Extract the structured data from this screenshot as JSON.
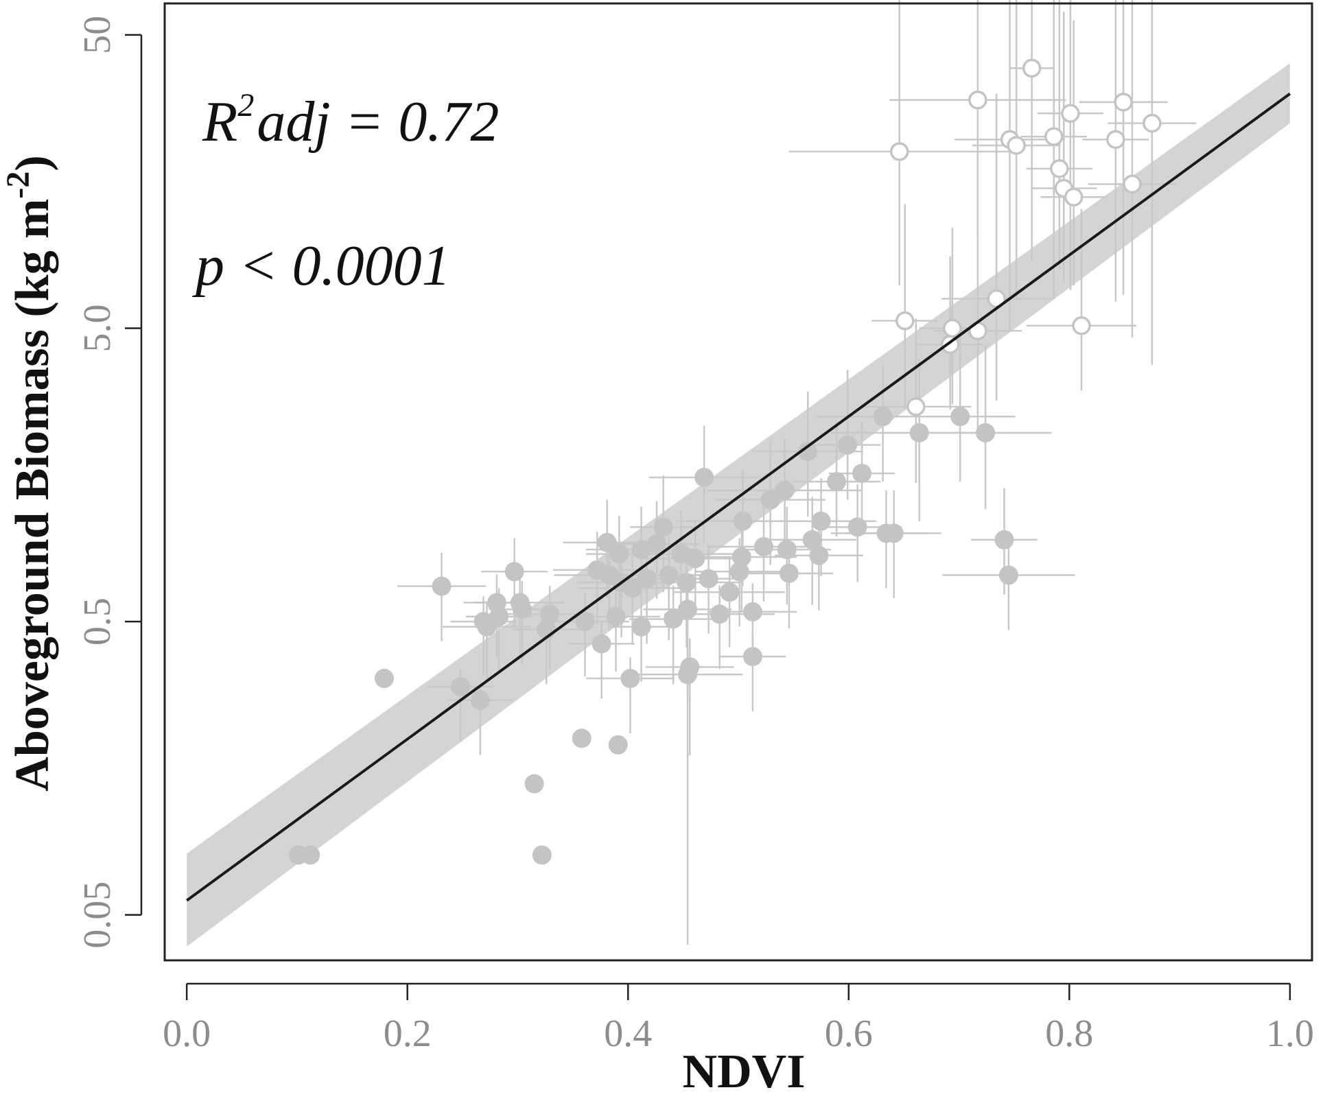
{
  "chart_data": {
    "type": "scatter",
    "xlabel": "NDVI",
    "ylabel": "Aboveground Biomass (kg m",
    "ylabel_sup": "-2",
    "ylabel_end": ")",
    "x_scale": "linear",
    "y_scale": "log",
    "xlim": [
      -0.02,
      1.02
    ],
    "ylim": [
      0.035,
      64
    ],
    "x_ticks": [
      0.0,
      0.2,
      0.4,
      0.6,
      0.8,
      1.0
    ],
    "x_tick_labels": [
      "0.0",
      "0.2",
      "0.4",
      "0.6",
      "0.8",
      "1.0"
    ],
    "y_ticks": [
      0.05,
      0.5,
      5.0,
      50
    ],
    "y_tick_labels": [
      "0.05",
      "0.5",
      "5.0",
      "50"
    ],
    "grid": false,
    "annotations": {
      "r2_base": "R",
      "r2_sup": "2",
      "r2_rest": "adj = 0.72",
      "p_value": "p < 0.0001"
    },
    "fit": {
      "x": [
        0.0,
        1.0
      ],
      "y": [
        0.056,
        31.5
      ],
      "ci_lower": [
        0.039,
        25.0
      ],
      "ci_upper": [
        0.081,
        40.0
      ]
    },
    "colors": {
      "filled_point": "#c4c4c4",
      "open_point_stroke": "#c4c4c4",
      "errorbar": "#c8c8c8",
      "fit_line": "#1a1a1a",
      "band": "#d4d4d4",
      "axis": "#222222",
      "tick_label": "#8c8c8c"
    },
    "open_points": [
      [
        0.766,
        38.5,
        0.02,
        2.8,
        0.78
      ],
      [
        0.717,
        30.0,
        0.08,
        7.0,
        0.65
      ],
      [
        0.849,
        29.5,
        0.04,
        7.0,
        0.78
      ],
      [
        0.801,
        27.0,
        0.03,
        6.0,
        0.75
      ],
      [
        0.875,
        25.0,
        0.04,
        5.0,
        0.85
      ],
      [
        0.746,
        22.0,
        0.05,
        4.0,
        0.78
      ],
      [
        0.752,
        21.0,
        0.04,
        5.0,
        0.7
      ],
      [
        0.786,
        22.5,
        0.03,
        5.0,
        0.72
      ],
      [
        0.842,
        22.0,
        0.03,
        5.0,
        0.72
      ],
      [
        0.646,
        20.0,
        0.1,
        9.0,
        0.65
      ],
      [
        0.791,
        17.5,
        0.03,
        3.0,
        0.55
      ],
      [
        0.795,
        15.0,
        0.03,
        3.0,
        0.52
      ],
      [
        0.804,
        14.0,
        0.03,
        3.0,
        0.5
      ],
      [
        0.857,
        15.5,
        0.04,
        4.0,
        0.7
      ],
      [
        0.734,
        6.3,
        0.05,
        4.0,
        0.55
      ],
      [
        0.651,
        5.3,
        0.03,
        1.5,
        0.5
      ],
      [
        0.694,
        5.0,
        0.03,
        1.2,
        0.45
      ],
      [
        0.717,
        4.9,
        0.04,
        3.0,
        0.55
      ],
      [
        0.811,
        5.1,
        0.05,
        1.5,
        0.4
      ],
      [
        0.692,
        4.4,
        0.03,
        1.0,
        0.4
      ],
      [
        0.661,
        2.7,
        0.05,
        1.0,
        0.45
      ]
    ],
    "filled_points": [
      [
        0.631,
        2.5,
        0.06,
        0.5,
        0.4
      ],
      [
        0.599,
        2.0,
        0.03,
        0.8,
        0.35
      ],
      [
        0.563,
        1.9,
        0.05,
        0.6,
        0.4
      ],
      [
        0.664,
        2.2,
        0.08,
        0.8,
        0.5
      ],
      [
        0.701,
        2.5,
        0.05,
        1.0,
        0.4
      ],
      [
        0.724,
        2.2,
        0.06,
        1.0,
        0.45
      ],
      [
        0.469,
        1.55,
        0.05,
        0.5,
        0.4
      ],
      [
        0.589,
        1.5,
        0.04,
        0.6,
        0.35
      ],
      [
        0.612,
        1.6,
        0.03,
        0.5,
        0.35
      ],
      [
        0.542,
        1.4,
        0.07,
        0.5,
        0.4
      ],
      [
        0.529,
        1.3,
        0.05,
        0.6,
        0.4
      ],
      [
        0.504,
        1.1,
        0.06,
        0.5,
        0.4
      ],
      [
        0.432,
        1.05,
        0.03,
        0.5,
        0.4
      ],
      [
        0.575,
        1.1,
        0.05,
        0.4,
        0.35
      ],
      [
        0.608,
        1.05,
        0.04,
        0.4,
        0.35
      ],
      [
        0.634,
        1.0,
        0.05,
        0.4,
        0.35
      ],
      [
        0.641,
        1.0,
        0.03,
        0.4,
        0.4
      ],
      [
        0.567,
        0.95,
        0.04,
        0.4,
        0.4
      ],
      [
        0.523,
        0.9,
        0.05,
        0.4,
        0.35
      ],
      [
        0.544,
        0.88,
        0.04,
        0.4,
        0.35
      ],
      [
        0.448,
        0.85,
        0.06,
        0.4,
        0.4
      ],
      [
        0.503,
        0.83,
        0.05,
        0.4,
        0.35
      ],
      [
        0.461,
        0.82,
        0.05,
        0.35,
        0.35
      ],
      [
        0.426,
        0.92,
        0.04,
        0.4,
        0.35
      ],
      [
        0.412,
        0.88,
        0.05,
        0.4,
        0.35
      ],
      [
        0.381,
        0.93,
        0.04,
        0.4,
        0.35
      ],
      [
        0.392,
        0.85,
        0.03,
        0.35,
        0.35
      ],
      [
        0.372,
        0.75,
        0.04,
        0.35,
        0.35
      ],
      [
        0.383,
        0.72,
        0.05,
        0.35,
        0.35
      ],
      [
        0.394,
        0.68,
        0.04,
        0.3,
        0.35
      ],
      [
        0.404,
        0.65,
        0.05,
        0.3,
        0.35
      ],
      [
        0.417,
        0.7,
        0.05,
        0.35,
        0.4
      ],
      [
        0.437,
        0.72,
        0.04,
        0.35,
        0.4
      ],
      [
        0.453,
        0.68,
        0.05,
        0.3,
        0.4
      ],
      [
        0.473,
        0.7,
        0.03,
        0.3,
        0.35
      ],
      [
        0.492,
        0.63,
        0.05,
        0.3,
        0.35
      ],
      [
        0.501,
        0.74,
        0.04,
        0.3,
        0.35
      ],
      [
        0.546,
        0.73,
        0.04,
        0.3,
        0.35
      ],
      [
        0.573,
        0.84,
        0.04,
        0.3,
        0.35
      ],
      [
        0.297,
        0.74,
        0.03,
        0.3,
        0.35
      ],
      [
        0.231,
        0.66,
        0.04,
        0.3,
        0.35
      ],
      [
        0.281,
        0.58,
        0.03,
        0.25,
        0.35
      ],
      [
        0.302,
        0.58,
        0.04,
        0.25,
        0.35
      ],
      [
        0.304,
        0.55,
        0.03,
        0.25,
        0.35
      ],
      [
        0.283,
        0.52,
        0.03,
        0.25,
        0.35
      ],
      [
        0.329,
        0.53,
        0.04,
        0.25,
        0.35
      ],
      [
        0.269,
        0.5,
        0.03,
        0.22,
        0.35
      ],
      [
        0.272,
        0.48,
        0.04,
        0.22,
        0.35
      ],
      [
        0.326,
        0.47,
        0.03,
        0.22,
        0.35
      ],
      [
        0.361,
        0.5,
        0.04,
        0.25,
        0.35
      ],
      [
        0.389,
        0.52,
        0.04,
        0.25,
        0.35
      ],
      [
        0.412,
        0.48,
        0.03,
        0.22,
        0.35
      ],
      [
        0.441,
        0.51,
        0.04,
        0.3,
        0.4
      ],
      [
        0.454,
        0.55,
        0.04,
        0.3,
        0.5
      ],
      [
        0.483,
        0.53,
        0.05,
        0.25,
        0.35
      ],
      [
        0.513,
        0.54,
        0.04,
        0.25,
        0.35
      ],
      [
        0.376,
        0.42,
        0.03,
        0.2,
        0.35
      ],
      [
        0.402,
        0.32,
        0.04,
        0.18,
        0.35
      ],
      [
        0.454,
        0.33,
        0.05,
        0.25,
        0.88
      ],
      [
        0.456,
        0.35,
        0.04,
        0.25,
        0.5
      ],
      [
        0.513,
        0.38,
        0.03,
        0.2,
        0.35
      ],
      [
        0.248,
        0.3,
        0.03,
        0.15,
        0.35
      ],
      [
        0.266,
        0.27,
        0.03,
        0.12,
        0.35
      ],
      [
        0.179,
        0.32,
        0.0,
        0.0,
        0.0
      ],
      [
        0.358,
        0.2,
        0.0,
        0.0,
        0.0
      ],
      [
        0.391,
        0.19,
        0.0,
        0.0,
        0.0
      ],
      [
        0.315,
        0.14,
        0.0,
        0.0,
        0.0
      ],
      [
        0.322,
        0.08,
        0.0,
        0.0,
        0.0
      ],
      [
        0.101,
        0.08,
        0.0,
        0.0,
        0.0
      ],
      [
        0.112,
        0.08,
        0.0,
        0.0,
        0.0
      ],
      [
        0.741,
        0.95,
        0.03,
        0.5,
        0.35
      ],
      [
        0.745,
        0.72,
        0.06,
        0.4,
        0.35
      ]
    ]
  }
}
